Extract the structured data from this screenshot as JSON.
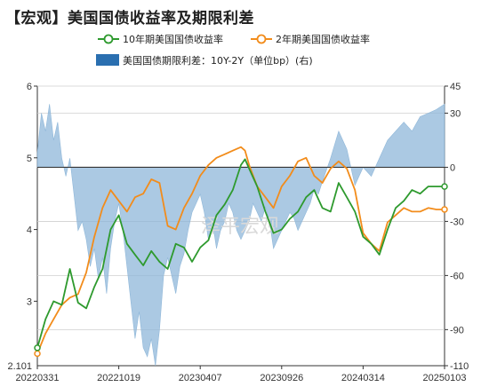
{
  "title": "【宏观】美国国债收益率及期限利差",
  "watermark": "泽平宏观",
  "colors": {
    "y10": "#2e9a2e",
    "y2": "#f28c1b",
    "spread": "#8fb7d9",
    "spread_legend": "#2a6fb0"
  },
  "chart_data": {
    "type": "line+area",
    "x_ticks": [
      "20220331",
      "20221019",
      "20230407",
      "20230926",
      "20240314",
      "20250103"
    ],
    "left_axis": {
      "min": 2.101,
      "max": 6,
      "ticks": [
        3,
        4,
        5,
        6
      ],
      "extra_label": "2.101"
    },
    "right_axis": {
      "min": -110,
      "max": 45,
      "ticks": [
        45,
        30,
        0,
        -30,
        -60,
        -90,
        -110
      ]
    },
    "legend": [
      {
        "key": "y10",
        "label": "10年期美国国债收益率"
      },
      {
        "key": "y2",
        "label": "2年期美国国债收益率"
      },
      {
        "key": "spread",
        "label": "美国国债期限利差：10Y-2Y（单位bp）(右)"
      }
    ],
    "series": [
      {
        "name": "10年期美国国债收益率",
        "key": "y10",
        "axis": "left",
        "points": [
          [
            0,
            2.35
          ],
          [
            0.02,
            2.75
          ],
          [
            0.04,
            3.0
          ],
          [
            0.06,
            2.95
          ],
          [
            0.08,
            3.45
          ],
          [
            0.1,
            2.98
          ],
          [
            0.12,
            2.9
          ],
          [
            0.14,
            3.2
          ],
          [
            0.16,
            3.45
          ],
          [
            0.18,
            4.0
          ],
          [
            0.2,
            4.2
          ],
          [
            0.22,
            3.8
          ],
          [
            0.24,
            3.65
          ],
          [
            0.26,
            3.5
          ],
          [
            0.28,
            3.7
          ],
          [
            0.3,
            3.55
          ],
          [
            0.32,
            3.45
          ],
          [
            0.34,
            3.8
          ],
          [
            0.36,
            3.75
          ],
          [
            0.38,
            3.55
          ],
          [
            0.4,
            3.75
          ],
          [
            0.42,
            3.85
          ],
          [
            0.44,
            4.2
          ],
          [
            0.46,
            4.35
          ],
          [
            0.48,
            4.55
          ],
          [
            0.5,
            4.9
          ],
          [
            0.51,
            4.98
          ],
          [
            0.52,
            4.85
          ],
          [
            0.54,
            4.6
          ],
          [
            0.56,
            4.25
          ],
          [
            0.58,
            3.95
          ],
          [
            0.6,
            4.0
          ],
          [
            0.62,
            4.15
          ],
          [
            0.64,
            4.25
          ],
          [
            0.66,
            4.45
          ],
          [
            0.68,
            4.55
          ],
          [
            0.7,
            4.3
          ],
          [
            0.72,
            4.25
          ],
          [
            0.74,
            4.65
          ],
          [
            0.76,
            4.45
          ],
          [
            0.78,
            4.25
          ],
          [
            0.8,
            3.9
          ],
          [
            0.82,
            3.8
          ],
          [
            0.84,
            3.65
          ],
          [
            0.86,
            4.0
          ],
          [
            0.88,
            4.3
          ],
          [
            0.9,
            4.4
          ],
          [
            0.92,
            4.55
          ],
          [
            0.94,
            4.5
          ],
          [
            0.96,
            4.6
          ],
          [
            0.98,
            4.6
          ],
          [
            1.0,
            4.6
          ]
        ]
      },
      {
        "name": "2年期美国国债收益率",
        "key": "y2",
        "axis": "left",
        "points": [
          [
            0,
            2.27
          ],
          [
            0.02,
            2.55
          ],
          [
            0.04,
            2.75
          ],
          [
            0.06,
            2.95
          ],
          [
            0.08,
            3.05
          ],
          [
            0.1,
            3.1
          ],
          [
            0.12,
            3.4
          ],
          [
            0.14,
            3.9
          ],
          [
            0.16,
            4.3
          ],
          [
            0.18,
            4.55
          ],
          [
            0.2,
            4.4
          ],
          [
            0.22,
            4.25
          ],
          [
            0.24,
            4.45
          ],
          [
            0.26,
            4.5
          ],
          [
            0.28,
            4.7
          ],
          [
            0.3,
            4.65
          ],
          [
            0.32,
            4.05
          ],
          [
            0.34,
            4.0
          ],
          [
            0.36,
            4.3
          ],
          [
            0.38,
            4.5
          ],
          [
            0.4,
            4.75
          ],
          [
            0.42,
            4.9
          ],
          [
            0.44,
            5.0
          ],
          [
            0.46,
            5.05
          ],
          [
            0.48,
            5.1
          ],
          [
            0.5,
            5.15
          ],
          [
            0.51,
            5.1
          ],
          [
            0.52,
            4.9
          ],
          [
            0.54,
            4.6
          ],
          [
            0.56,
            4.45
          ],
          [
            0.58,
            4.3
          ],
          [
            0.6,
            4.6
          ],
          [
            0.62,
            4.75
          ],
          [
            0.64,
            4.95
          ],
          [
            0.66,
            5.0
          ],
          [
            0.68,
            4.75
          ],
          [
            0.7,
            4.65
          ],
          [
            0.72,
            4.85
          ],
          [
            0.74,
            4.95
          ],
          [
            0.76,
            4.85
          ],
          [
            0.78,
            4.55
          ],
          [
            0.8,
            3.95
          ],
          [
            0.82,
            3.8
          ],
          [
            0.84,
            3.7
          ],
          [
            0.86,
            4.1
          ],
          [
            0.88,
            4.2
          ],
          [
            0.9,
            4.3
          ],
          [
            0.92,
            4.25
          ],
          [
            0.94,
            4.25
          ],
          [
            0.96,
            4.3
          ],
          [
            0.98,
            4.28
          ],
          [
            1.0,
            4.28
          ]
        ]
      },
      {
        "name": "美国国债期限利差：10Y-2Y（单位bp）(右)",
        "key": "spread",
        "axis": "right",
        "points": [
          [
            0,
            8
          ],
          [
            0.01,
            30
          ],
          [
            0.02,
            20
          ],
          [
            0.03,
            35
          ],
          [
            0.04,
            15
          ],
          [
            0.05,
            25
          ],
          [
            0.06,
            5
          ],
          [
            0.07,
            -5
          ],
          [
            0.08,
            5
          ],
          [
            0.09,
            -15
          ],
          [
            0.1,
            -35
          ],
          [
            0.11,
            -30
          ],
          [
            0.12,
            -40
          ],
          [
            0.13,
            -55
          ],
          [
            0.14,
            -45
          ],
          [
            0.15,
            -62
          ],
          [
            0.16,
            -50
          ],
          [
            0.17,
            -70
          ],
          [
            0.18,
            -45
          ],
          [
            0.19,
            -30
          ],
          [
            0.2,
            -20
          ],
          [
            0.21,
            -35
          ],
          [
            0.22,
            -55
          ],
          [
            0.23,
            -75
          ],
          [
            0.24,
            -95
          ],
          [
            0.25,
            -80
          ],
          [
            0.26,
            -100
          ],
          [
            0.27,
            -105
          ],
          [
            0.28,
            -95
          ],
          [
            0.29,
            -110
          ],
          [
            0.3,
            -90
          ],
          [
            0.31,
            -60
          ],
          [
            0.32,
            -50
          ],
          [
            0.33,
            -60
          ],
          [
            0.34,
            -70
          ],
          [
            0.35,
            -55
          ],
          [
            0.36,
            -48
          ],
          [
            0.37,
            -35
          ],
          [
            0.38,
            -25
          ],
          [
            0.39,
            -20
          ],
          [
            0.4,
            -15
          ],
          [
            0.41,
            -25
          ],
          [
            0.42,
            -40
          ],
          [
            0.43,
            -30
          ],
          [
            0.44,
            -45
          ],
          [
            0.45,
            -35
          ],
          [
            0.46,
            -30
          ],
          [
            0.47,
            -20
          ],
          [
            0.48,
            -25
          ],
          [
            0.49,
            -35
          ],
          [
            0.5,
            -40
          ],
          [
            0.51,
            -35
          ],
          [
            0.52,
            -30
          ],
          [
            0.53,
            -20
          ],
          [
            0.54,
            -25
          ],
          [
            0.55,
            -30
          ],
          [
            0.56,
            -22
          ],
          [
            0.57,
            -30
          ],
          [
            0.58,
            -45
          ],
          [
            0.59,
            -40
          ],
          [
            0.6,
            -35
          ],
          [
            0.61,
            -30
          ],
          [
            0.62,
            -25
          ],
          [
            0.63,
            -28
          ],
          [
            0.64,
            -35
          ],
          [
            0.65,
            -30
          ],
          [
            0.66,
            -25
          ],
          [
            0.67,
            -20
          ],
          [
            0.68,
            -12
          ],
          [
            0.69,
            -15
          ],
          [
            0.7,
            -8
          ],
          [
            0.72,
            5
          ],
          [
            0.74,
            20
          ],
          [
            0.76,
            10
          ],
          [
            0.78,
            -10
          ],
          [
            0.8,
            0
          ],
          [
            0.82,
            -5
          ],
          [
            0.84,
            5
          ],
          [
            0.86,
            15
          ],
          [
            0.88,
            20
          ],
          [
            0.9,
            25
          ],
          [
            0.92,
            20
          ],
          [
            0.94,
            28
          ],
          [
            0.96,
            30
          ],
          [
            0.98,
            32
          ],
          [
            1.0,
            35
          ]
        ]
      }
    ]
  }
}
